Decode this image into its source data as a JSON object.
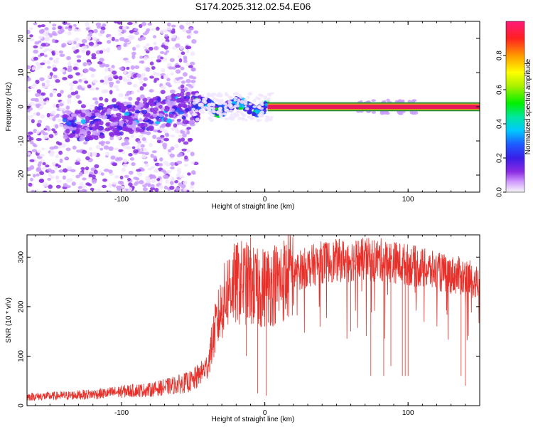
{
  "figure": {
    "title": "S174.2025.312.02.54.E06"
  },
  "colors": {
    "snr_line": "#e8302a",
    "band_fill": "#e8185a",
    "band_edge": "#2a8a3a",
    "axis": "#000000"
  },
  "chart_data": [
    {
      "type": "heatmap",
      "name": "spectrogram",
      "xlabel": "Height of straight line (km)",
      "ylabel": "Frequency (Hz)",
      "xlim": [
        -166,
        150
      ],
      "ylim": [
        -25,
        25
      ],
      "xticks": [
        -100,
        0,
        100
      ],
      "xtick_labels": [
        "-100",
        "0",
        "100"
      ],
      "yticks": [
        -20,
        -10,
        0,
        10,
        20
      ],
      "ytick_labels": [
        "-20",
        "-10",
        "0",
        "10",
        "20"
      ],
      "constant_band": {
        "x_start": 2,
        "x_end": 150,
        "freq_center": 0,
        "freq_halfwidth": 1
      },
      "regions": [
        {
          "label": "noise",
          "x_range": [
            -166,
            -50
          ],
          "freq_range": [
            -25,
            25
          ],
          "amplitude": "0.05-0.2"
        },
        {
          "label": "converging signal",
          "x_range": [
            -140,
            -45
          ],
          "freq_center_start": -6,
          "freq_center_end": 0,
          "amplitude": "0.1-0.3"
        },
        {
          "label": "near-zero signal",
          "x_range": [
            -50,
            0
          ],
          "freq_center": 0,
          "amplitude": "0.2-0.4"
        },
        {
          "label": "sparse patch",
          "x_range": [
            65,
            108
          ],
          "freq_center": 0,
          "amplitude": "0.1"
        }
      ],
      "colorbar": {
        "label": "Normalized spectral amplitude",
        "range": [
          0,
          1
        ],
        "ticks": [
          0,
          0.2,
          0.4,
          0.6,
          0.8
        ],
        "tick_labels": [
          "0.0",
          "0.2",
          "0.4",
          "0.6",
          "0.8"
        ]
      }
    },
    {
      "type": "line",
      "name": "snr",
      "xlabel": "Height of straight line (km)",
      "ylabel": "SNR (10 * v/v)",
      "xlim": [
        -166,
        150
      ],
      "ylim": [
        0,
        345
      ],
      "xticks": [
        -100,
        0,
        100
      ],
      "xtick_labels": [
        "-100",
        "0",
        "100"
      ],
      "yticks": [
        0,
        100,
        200,
        300
      ],
      "ytick_labels": [
        "0",
        "100",
        "200",
        "300"
      ],
      "envelope_x": [
        -166,
        -140,
        -110,
        -95,
        -80,
        -65,
        -50,
        -40,
        -35,
        -30,
        -25,
        -15,
        -5,
        10,
        25,
        40,
        60,
        80,
        100,
        120,
        140,
        150
      ],
      "envelope_y": [
        18,
        20,
        25,
        30,
        32,
        40,
        50,
        80,
        150,
        200,
        240,
        250,
        235,
        250,
        275,
        290,
        295,
        295,
        285,
        270,
        260,
        245
      ],
      "spikes": [
        {
          "x": -13,
          "y": 100
        },
        {
          "x": -10,
          "y": 340
        },
        {
          "x": -5,
          "y": 25
        },
        {
          "x": 1,
          "y": 20
        },
        {
          "x": 60,
          "y": 150
        },
        {
          "x": 74,
          "y": 60
        },
        {
          "x": 83,
          "y": 60
        },
        {
          "x": 88,
          "y": 80
        },
        {
          "x": 96,
          "y": 60
        },
        {
          "x": 98,
          "y": 60
        },
        {
          "x": 100,
          "y": 60
        },
        {
          "x": 137,
          "y": 60
        },
        {
          "x": 140,
          "y": 40
        }
      ]
    }
  ]
}
